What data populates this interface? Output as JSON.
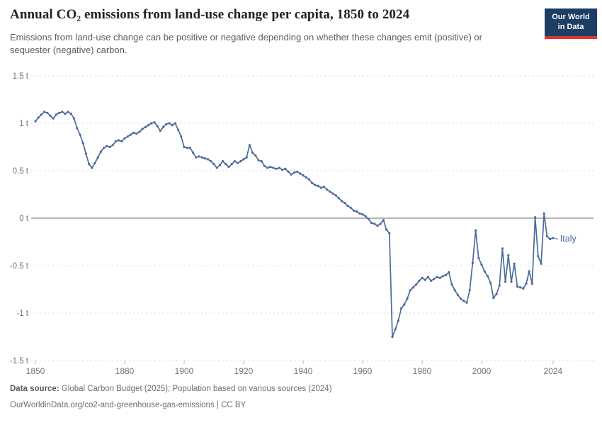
{
  "header": {
    "title": "Annual CO₂ emissions from land-use change per capita, 1850 to 2024",
    "subtitle": "Emissions from land-use change can be positive or negative depending on whether these changes emit (positive) or sequester (negative) carbon."
  },
  "logo": {
    "line1": "Our World",
    "line2": "in Data"
  },
  "footer": {
    "source_label": "Data source:",
    "source_text": " Global Carbon Budget (2025); Population based on various sources (2024)",
    "url_line": "OurWorldinData.org/co2-and-greenhouse-gas-emissions | CC BY"
  },
  "colors": {
    "line": "#4c6a9c",
    "grid": "#d9d9d9",
    "zero_line": "#ababab",
    "axis_text": "#737373",
    "tick_mark": "#b8b8b8",
    "logo_bg": "#1d3d63",
    "logo_red": "#e0362c"
  },
  "chart_data": {
    "type": "line",
    "title": "Annual CO₂ emissions from land-use change per capita, 1850 to 2024",
    "xlabel": "",
    "ylabel": "",
    "unit": "t",
    "x_range": [
      1850,
      2024
    ],
    "x_step": 1,
    "ylim": [
      -1.5,
      1.5
    ],
    "grid": "horizontal dashed, solid zero line",
    "legend_position": "end-of-line label",
    "x_ticks": [
      1850,
      1880,
      1900,
      1920,
      1940,
      1960,
      1980,
      2000,
      2024
    ],
    "y_ticks": [
      {
        "value": 1.5,
        "label": "1.5 t"
      },
      {
        "value": 1.0,
        "label": "1 t"
      },
      {
        "value": 0.5,
        "label": "0.5 t"
      },
      {
        "value": 0.0,
        "label": "0 t"
      },
      {
        "value": -0.5,
        "label": "-0.5 t"
      },
      {
        "value": -1.0,
        "label": "-1 t"
      },
      {
        "value": -1.5,
        "label": "-1.5 t"
      }
    ],
    "series": [
      {
        "name": "Italy",
        "values": [
          1.02,
          1.06,
          1.09,
          1.12,
          1.11,
          1.08,
          1.05,
          1.09,
          1.11,
          1.12,
          1.1,
          1.12,
          1.1,
          1.05,
          0.95,
          0.88,
          0.79,
          0.68,
          0.57,
          0.53,
          0.58,
          0.64,
          0.7,
          0.74,
          0.76,
          0.75,
          0.77,
          0.81,
          0.82,
          0.81,
          0.84,
          0.86,
          0.88,
          0.9,
          0.89,
          0.91,
          0.94,
          0.96,
          0.98,
          1.0,
          1.01,
          0.97,
          0.92,
          0.96,
          0.99,
          1.0,
          0.98,
          1.0,
          0.93,
          0.86,
          0.75,
          0.74,
          0.74,
          0.69,
          0.64,
          0.65,
          0.64,
          0.63,
          0.62,
          0.6,
          0.57,
          0.53,
          0.56,
          0.6,
          0.57,
          0.54,
          0.57,
          0.6,
          0.58,
          0.6,
          0.62,
          0.64,
          0.77,
          0.69,
          0.66,
          0.61,
          0.6,
          0.55,
          0.53,
          0.54,
          0.53,
          0.52,
          0.53,
          0.51,
          0.52,
          0.49,
          0.46,
          0.48,
          0.49,
          0.47,
          0.45,
          0.43,
          0.41,
          0.37,
          0.35,
          0.34,
          0.32,
          0.33,
          0.3,
          0.28,
          0.26,
          0.24,
          0.21,
          0.18,
          0.16,
          0.13,
          0.11,
          0.08,
          0.07,
          0.05,
          0.04,
          0.02,
          -0.01,
          -0.05,
          -0.06,
          -0.08,
          -0.06,
          -0.02,
          -0.12,
          -0.16,
          -1.25,
          -1.17,
          -1.08,
          -0.95,
          -0.91,
          -0.85,
          -0.76,
          -0.73,
          -0.7,
          -0.66,
          -0.63,
          -0.65,
          -0.62,
          -0.66,
          -0.64,
          -0.62,
          -0.63,
          -0.61,
          -0.6,
          -0.57,
          -0.7,
          -0.76,
          -0.81,
          -0.85,
          -0.87,
          -0.89,
          -0.76,
          -0.47,
          -0.13,
          -0.42,
          -0.49,
          -0.56,
          -0.61,
          -0.68,
          -0.84,
          -0.8,
          -0.71,
          -0.32,
          -0.67,
          -0.39,
          -0.67,
          -0.48,
          -0.72,
          -0.73,
          -0.74,
          -0.69,
          -0.56,
          -0.69,
          0.01,
          -0.4,
          -0.48,
          0.05,
          -0.19,
          -0.22,
          -0.21
        ]
      }
    ],
    "entity_label": "Italy"
  }
}
